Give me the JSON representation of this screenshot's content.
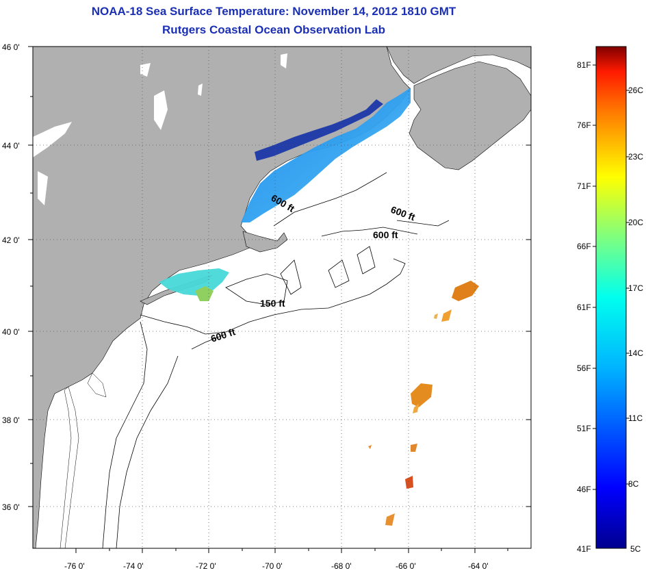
{
  "title": {
    "line1": "NOAA-18 Sea Surface Temperature:  November 14, 2012 1810 GMT",
    "line2": "Rutgers Coastal Ocean Observation Lab"
  },
  "map": {
    "lat_labels": [
      "46 0'",
      "44 0'",
      "42 0'",
      "40 0'",
      "38 0'",
      "36 0'"
    ],
    "lon_labels": [
      "-76 0'",
      "-74 0'",
      "-72 0'",
      "-70 0'",
      "-68 0'",
      "-66 0'",
      "-64 0'"
    ],
    "contours": [
      "600 ft",
      "600 ft",
      "600 ft",
      "150 ft",
      "600 ft"
    ],
    "colors": {
      "land": "#b0b0b0",
      "ocean": "#ffffff",
      "border": "#000000"
    }
  },
  "colorbar": {
    "fahrenheit": [
      "81F",
      "76F",
      "71F",
      "66F",
      "61F",
      "56F",
      "51F",
      "46F",
      "41F"
    ],
    "celsius": [
      "26C",
      "23C",
      "20C",
      "17C",
      "14C",
      "11C",
      "8C",
      "5C"
    ],
    "range_f": [
      41,
      82
    ],
    "range_c": [
      5,
      28
    ]
  }
}
